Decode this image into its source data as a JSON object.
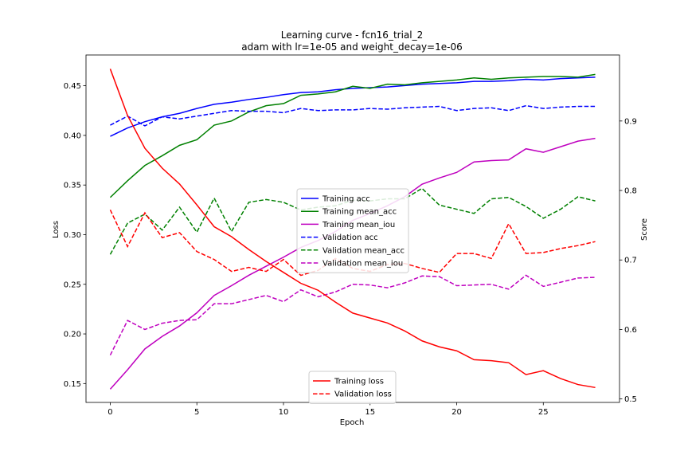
{
  "chart_data": {
    "type": "line",
    "title": "Learning curve - fcn16_trial_2",
    "subtitle": "adam with lr=1e-05 and weight_decay=1e-06",
    "xlabel": "Epoch",
    "ylabel_left": "Loss",
    "ylabel_right": "Score",
    "ylabel_left_color": "#ff0000",
    "x_ticks": [
      0,
      5,
      10,
      15,
      20,
      25
    ],
    "y_left_ticks": [
      0.15,
      0.2,
      0.25,
      0.3,
      0.35,
      0.4,
      0.45
    ],
    "y_right_ticks": [
      0.5,
      0.6,
      0.7,
      0.8,
      0.9
    ],
    "xlim": [
      -1.4,
      29.4
    ],
    "ylim_left": [
      0.131,
      0.481
    ],
    "ylim_right": [
      0.495,
      0.995
    ],
    "grid": false,
    "x": [
      0,
      1,
      2,
      3,
      4,
      5,
      6,
      7,
      8,
      9,
      10,
      11,
      12,
      13,
      14,
      15,
      16,
      17,
      18,
      19,
      20,
      21,
      22,
      23,
      24,
      25,
      26,
      27,
      28
    ],
    "score_series": [
      {
        "name": "Training acc",
        "color": "#0000ff",
        "dash": false,
        "values": [
          0.878,
          0.89,
          0.899,
          0.906,
          0.911,
          0.918,
          0.924,
          0.927,
          0.931,
          0.934,
          0.938,
          0.941,
          0.942,
          0.945,
          0.947,
          0.948,
          0.949,
          0.951,
          0.953,
          0.954,
          0.955,
          0.957,
          0.957,
          0.958,
          0.96,
          0.959,
          0.961,
          0.962,
          0.963
        ]
      },
      {
        "name": "Training mean_acc",
        "color": "#008000",
        "dash": false,
        "values": [
          0.79,
          0.814,
          0.836,
          0.85,
          0.865,
          0.873,
          0.894,
          0.9,
          0.913,
          0.922,
          0.925,
          0.937,
          0.939,
          0.942,
          0.95,
          0.947,
          0.953,
          0.952,
          0.955,
          0.957,
          0.959,
          0.962,
          0.96,
          0.962,
          0.963,
          0.964,
          0.964,
          0.963,
          0.967
        ]
      },
      {
        "name": "Training mean_iou",
        "color": "#bf00bf",
        "dash": false,
        "values": [
          0.514,
          0.542,
          0.572,
          0.59,
          0.605,
          0.624,
          0.649,
          0.663,
          0.678,
          0.691,
          0.704,
          0.718,
          0.728,
          0.741,
          0.757,
          0.767,
          0.778,
          0.791,
          0.809,
          0.818,
          0.826,
          0.841,
          0.843,
          0.844,
          0.86,
          0.855,
          0.863,
          0.871,
          0.875
        ]
      },
      {
        "name": "Validation acc",
        "color": "#0000ff",
        "dash": true,
        "values": [
          0.894,
          0.907,
          0.893,
          0.906,
          0.903,
          0.907,
          0.911,
          0.915,
          0.914,
          0.914,
          0.912,
          0.918,
          0.915,
          0.916,
          0.916,
          0.918,
          0.917,
          0.919,
          0.92,
          0.921,
          0.915,
          0.918,
          0.919,
          0.915,
          0.922,
          0.918,
          0.92,
          0.921,
          0.921
        ]
      },
      {
        "name": "Validation mean_acc",
        "color": "#008000",
        "dash": true,
        "values": [
          0.708,
          0.753,
          0.766,
          0.743,
          0.776,
          0.74,
          0.789,
          0.741,
          0.783,
          0.787,
          0.783,
          0.772,
          0.776,
          0.778,
          0.786,
          0.785,
          0.788,
          0.788,
          0.803,
          0.779,
          0.773,
          0.767,
          0.788,
          0.79,
          0.777,
          0.76,
          0.773,
          0.791,
          0.785
        ]
      },
      {
        "name": "Validation mean_iou",
        "color": "#bf00bf",
        "dash": true,
        "values": [
          0.563,
          0.613,
          0.6,
          0.609,
          0.613,
          0.614,
          0.637,
          0.637,
          0.643,
          0.649,
          0.64,
          0.657,
          0.647,
          0.654,
          0.665,
          0.664,
          0.66,
          0.667,
          0.677,
          0.676,
          0.663,
          0.664,
          0.665,
          0.658,
          0.678,
          0.662,
          0.668,
          0.674,
          0.675
        ]
      }
    ],
    "loss_series": [
      {
        "name": "Training loss",
        "color": "#ff0000",
        "dash": false,
        "values": [
          0.467,
          0.42,
          0.387,
          0.367,
          0.351,
          0.33,
          0.308,
          0.298,
          0.285,
          0.273,
          0.262,
          0.251,
          0.244,
          0.232,
          0.221,
          0.216,
          0.211,
          0.203,
          0.193,
          0.187,
          0.183,
          0.174,
          0.173,
          0.171,
          0.159,
          0.163,
          0.155,
          0.149,
          0.146
        ]
      },
      {
        "name": "Validation loss",
        "color": "#ff0000",
        "dash": true,
        "values": [
          0.325,
          0.288,
          0.322,
          0.297,
          0.302,
          0.283,
          0.275,
          0.263,
          0.267,
          0.263,
          0.275,
          0.259,
          0.264,
          0.276,
          0.266,
          0.263,
          0.27,
          0.271,
          0.266,
          0.262,
          0.281,
          0.281,
          0.276,
          0.311,
          0.281,
          0.282,
          0.286,
          0.289,
          0.293
        ]
      }
    ],
    "legend_scores_position": "center",
    "legend_loss_position": "lower-center"
  }
}
